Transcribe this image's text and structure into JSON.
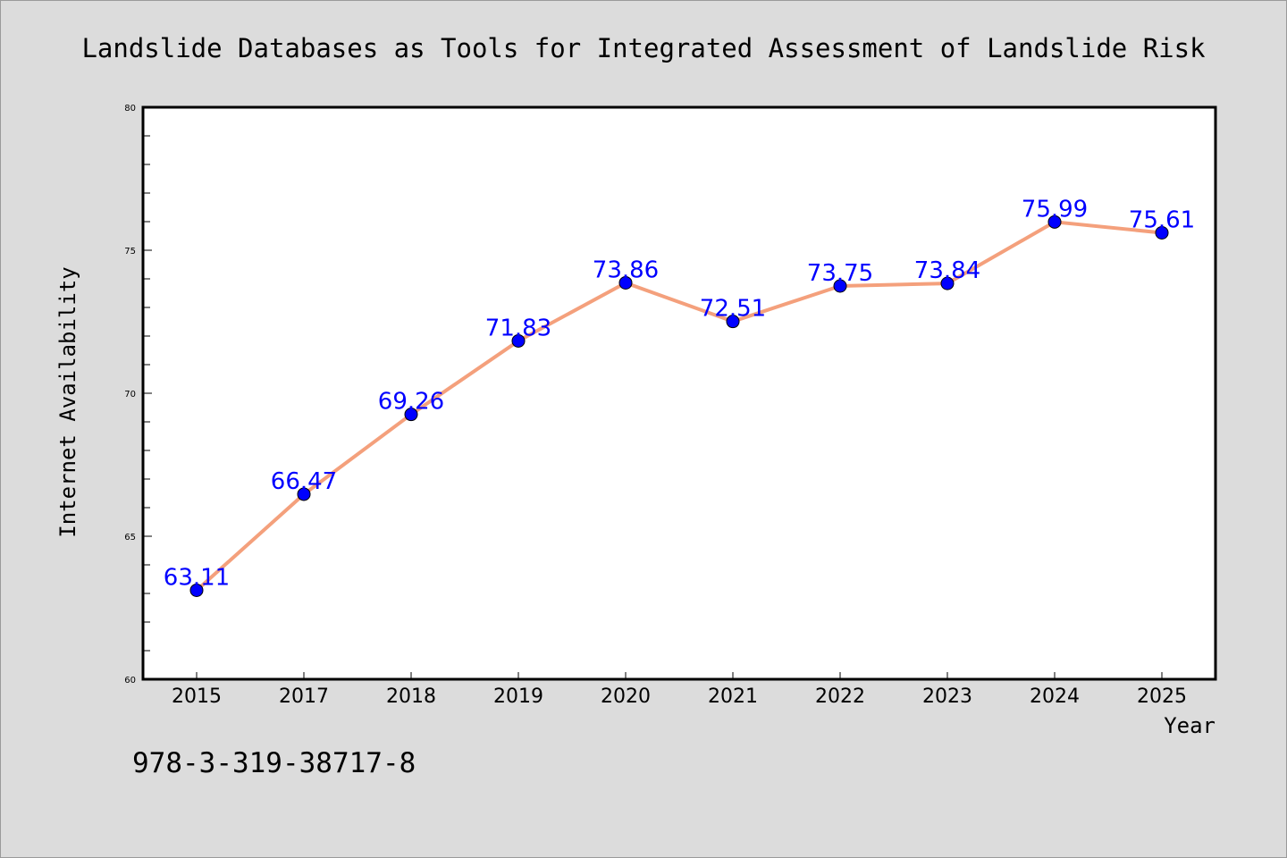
{
  "chart_data": {
    "type": "line",
    "title": "Landslide Databases as Tools for Integrated Assessment of Landslide Risk",
    "xlabel": "Year",
    "ylabel": "Internet Availability",
    "categories": [
      "2015",
      "2017",
      "2018",
      "2019",
      "2020",
      "2021",
      "2022",
      "2023",
      "2024",
      "2025"
    ],
    "series": [
      {
        "values": [
          63.11,
          66.47,
          69.26,
          71.83,
          73.86,
          72.51,
          73.75,
          73.84,
          75.99,
          75.61
        ],
        "labels": [
          "63.11",
          "66.47",
          "69.26",
          "71.83",
          "73.86",
          "72.51",
          "73.75",
          "73.84",
          "75.99",
          "75.61"
        ],
        "line_color": "#f4a07c",
        "marker_color": "#0000ff",
        "label_color": "#0000ff"
      }
    ],
    "ylim": [
      60,
      80
    ],
    "yticks": [
      "60",
      "65",
      "70",
      "75",
      "80"
    ],
    "grid": false,
    "legend": "none"
  },
  "footer": {
    "isbn": "978-3-319-38717-8"
  },
  "colors": {
    "background": "#dcdcdc",
    "plot_background": "#ffffff",
    "axis": "#000000"
  }
}
